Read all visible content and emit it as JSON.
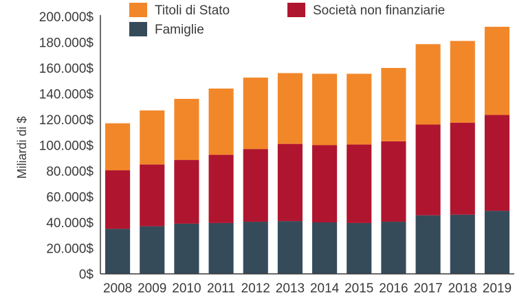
{
  "chart_data": {
    "type": "bar",
    "stacked": true,
    "title": "",
    "xlabel": "",
    "ylabel": "Miliardi di $",
    "ylim": [
      0,
      200000
    ],
    "yticks": [
      0,
      20000,
      40000,
      60000,
      80000,
      100000,
      120000,
      140000,
      160000,
      180000,
      200000
    ],
    "ytick_labels": [
      "0$",
      "20.000$",
      "40.000$",
      "60.000$",
      "80.000$",
      "100.000$",
      "120.000$",
      "140.000$",
      "160.000$",
      "180.000$",
      "200.000$"
    ],
    "categories": [
      "2008",
      "2009",
      "2010",
      "2011",
      "2012",
      "2013",
      "2014",
      "2015",
      "2016",
      "2017",
      "2018",
      "2019"
    ],
    "series": [
      {
        "name": "Famiglie",
        "color": "#354b5a",
        "values": [
          35000,
          37000,
          39000,
          39500,
          40500,
          41000,
          40000,
          39500,
          40500,
          45500,
          46000,
          49000
        ]
      },
      {
        "name": "Società non finanziarie",
        "color": "#b0152f",
        "values": [
          45500,
          48000,
          49500,
          53000,
          56500,
          60000,
          60000,
          61000,
          62500,
          70500,
          71500,
          74500
        ]
      },
      {
        "name": "Titoli di Stato",
        "color": "#f2872a",
        "values": [
          36500,
          42000,
          47500,
          51500,
          55500,
          55000,
          55500,
          55000,
          57000,
          62500,
          63500,
          68500
        ]
      }
    ],
    "legend": [
      {
        "name": "Titoli di Stato",
        "color": "#f2872a"
      },
      {
        "name": "Società non finanziarie",
        "color": "#b0152f"
      },
      {
        "name": "Famiglie",
        "color": "#354b5a"
      }
    ],
    "legend_position": "top",
    "grid": false
  }
}
